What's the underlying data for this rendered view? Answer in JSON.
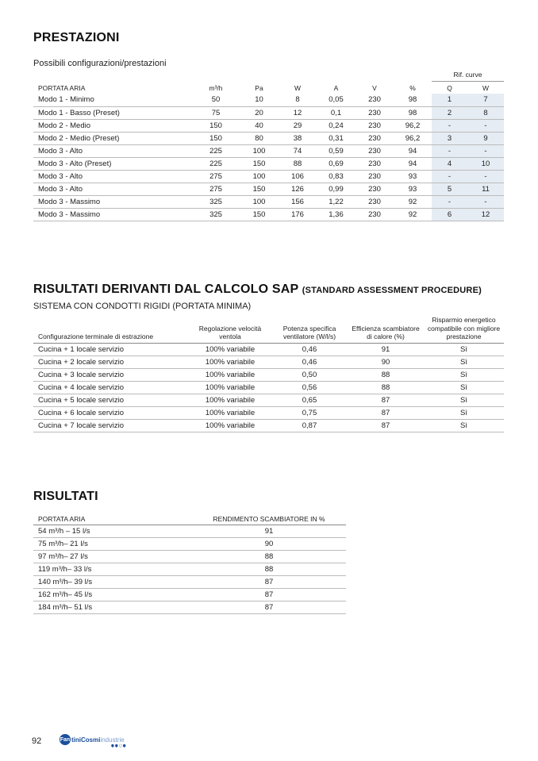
{
  "section1": {
    "title": "PRESTAZIONI",
    "subtitle": "Possibili configurazioni/prestazioni",
    "rif_label": "Rif. curve",
    "headers": [
      "PORTATA ARIA",
      "m³/h",
      "Pa",
      "W",
      "A",
      "V",
      "%",
      "Q",
      "W"
    ],
    "rows": [
      [
        "Modo 1 - Minimo",
        "50",
        "10",
        "8",
        "0,05",
        "230",
        "98",
        "1",
        "7"
      ],
      [
        "Modo 1 - Basso (Preset)",
        "75",
        "20",
        "12",
        "0,1",
        "230",
        "98",
        "2",
        "8"
      ],
      [
        "Modo 2 - Medio",
        "150",
        "40",
        "29",
        "0,24",
        "230",
        "96,2",
        "-",
        "-"
      ],
      [
        "Modo 2 - Medio (Preset)",
        "150",
        "80",
        "38",
        "0,31",
        "230",
        "96,2",
        "3",
        "9"
      ],
      [
        "Modo 3 - Alto",
        "225",
        "100",
        "74",
        "0,59",
        "230",
        "94",
        "-",
        "-"
      ],
      [
        "Modo 3 - Alto (Preset)",
        "225",
        "150",
        "88",
        "0,69",
        "230",
        "94",
        "4",
        "10"
      ],
      [
        "Modo 3 - Alto",
        "275",
        "100",
        "106",
        "0,83",
        "230",
        "93",
        "-",
        "-"
      ],
      [
        "Modo 3 - Alto",
        "275",
        "150",
        "126",
        "0,99",
        "230",
        "93",
        "5",
        "11"
      ],
      [
        "Modo 3 - Massimo",
        "325",
        "100",
        "156",
        "1,22",
        "230",
        "92",
        "-",
        "-"
      ],
      [
        "Modo 3 - Massimo",
        "325",
        "150",
        "176",
        "1,36",
        "230",
        "92",
        "6",
        "12"
      ]
    ]
  },
  "section2": {
    "title": "RISULTATI DERIVANTI DAL CALCOLO SAP",
    "title_small": "(STANDARD ASSESSMENT PROCEDURE)",
    "subtitle": "SISTEMA CON CONDOTTI RIGIDI (PORTATA MINIMA)",
    "headers": [
      "Configurazione terminale di estrazione",
      "Regolazione velocità ventola",
      "Potenza specifica ventilatore (W/l/s)",
      "Efficienza scambiatore di calore (%)",
      "Risparmio energetico compatibile con migliore prestazione"
    ],
    "rows": [
      [
        "Cucina + 1 locale servizio",
        "100% variabile",
        "0,46",
        "91",
        "Sì"
      ],
      [
        "Cucina + 2 locale servizio",
        "100% variabile",
        "0,46",
        "90",
        "Sì"
      ],
      [
        "Cucina + 3 locale servizio",
        "100% variabile",
        "0,50",
        "88",
        "Sì"
      ],
      [
        "Cucina + 4 locale servizio",
        "100% variabile",
        "0,56",
        "88",
        "Sì"
      ],
      [
        "Cucina + 5 locale servizio",
        "100% variabile",
        "0,65",
        "87",
        "Sì"
      ],
      [
        "Cucina + 6 locale servizio",
        "100% variabile",
        "0,75",
        "87",
        "Sì"
      ],
      [
        "Cucina + 7 locale servizio",
        "100% variabile",
        "0,87",
        "87",
        "Sì"
      ]
    ]
  },
  "section3": {
    "title": "RISULTATI",
    "headers": [
      "PORTATA ARIA",
      "RENDIMENTO SCAMBIATORE IN %"
    ],
    "rows": [
      [
        "54 m³/h – 15 l/s",
        "91"
      ],
      [
        "75 m³/h– 21 l/s",
        "90"
      ],
      [
        "97 m³/h– 27 l/s",
        "88"
      ],
      [
        "119 m³/h– 33 l/s",
        "88"
      ],
      [
        "140 m³/h– 39 l/s",
        "87"
      ],
      [
        "162 m³/h– 45 l/s",
        "87"
      ],
      [
        "184 m³/h– 51 l/s",
        "87"
      ]
    ]
  },
  "footer": {
    "page_number": "92",
    "logo_text": "FantiniCosmi industrie"
  }
}
